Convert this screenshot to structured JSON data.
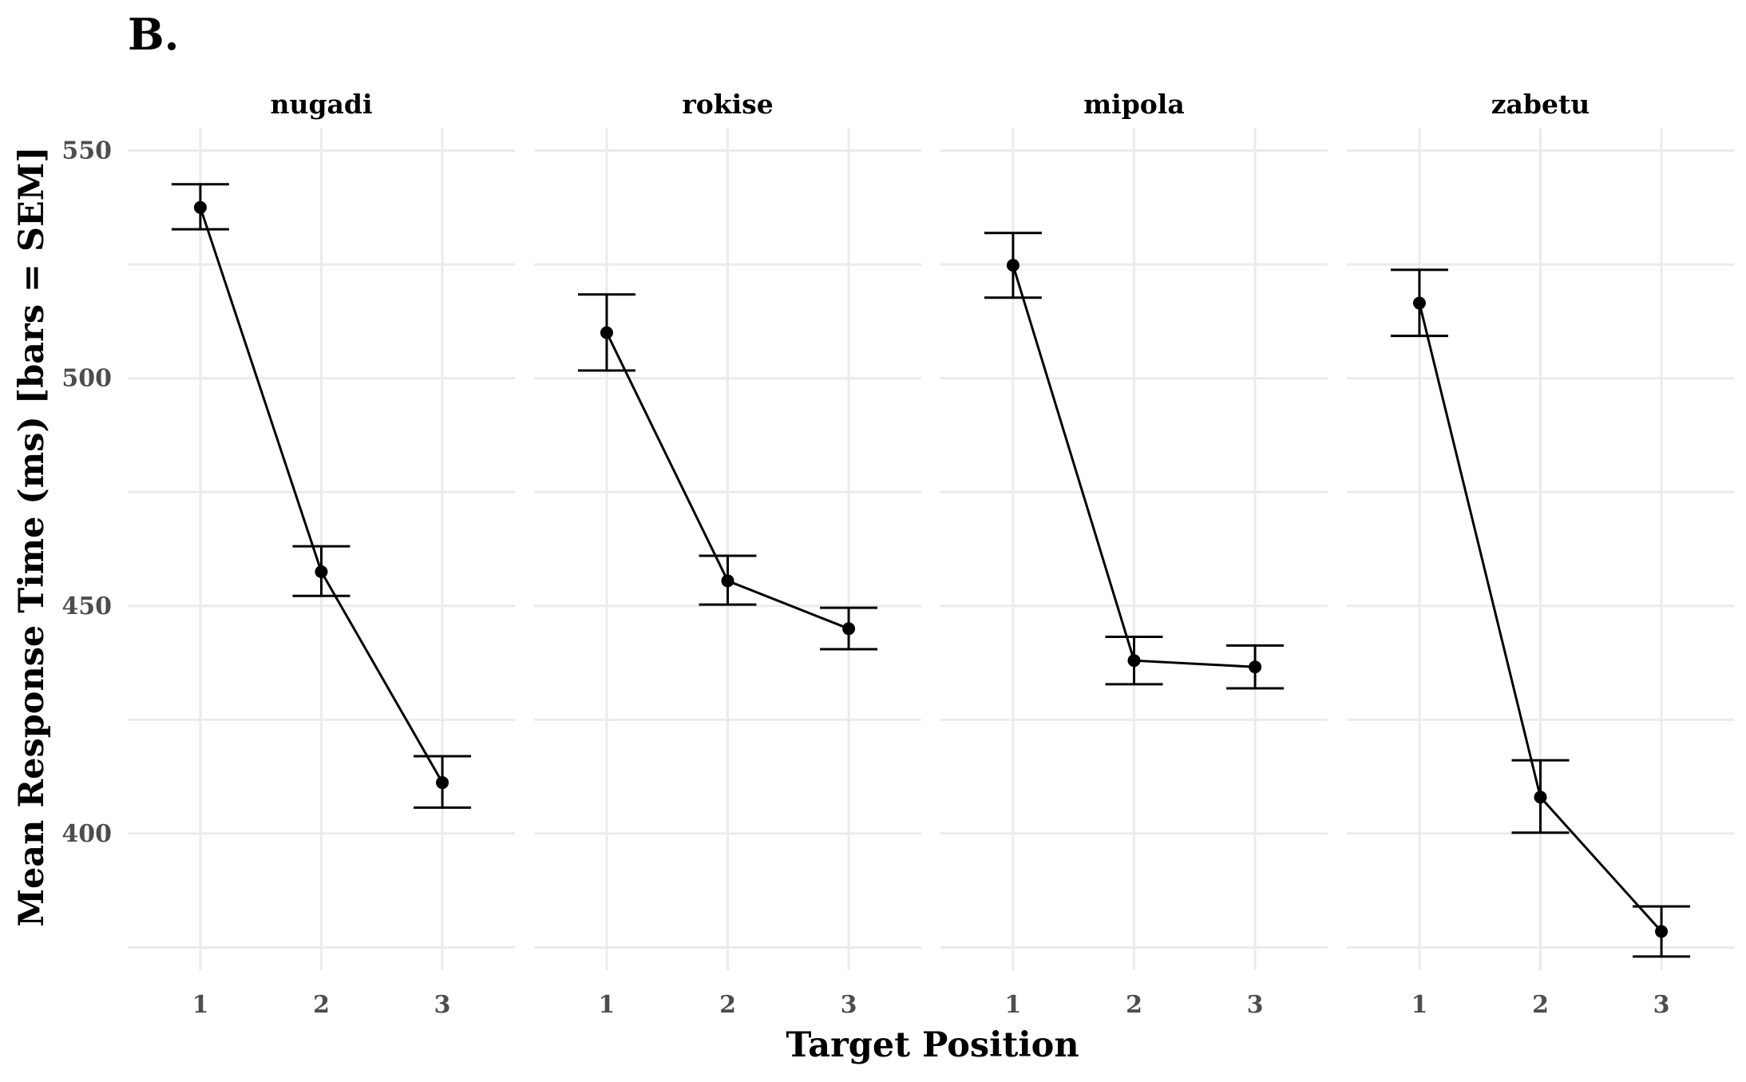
{
  "figure_label": "B.",
  "chart_data": {
    "type": "line",
    "xlabel": "Target Position",
    "ylabel": "Mean Response Time (ms) [bars = SEM]",
    "x": [
      1,
      2,
      3
    ],
    "x_ticks": [
      "1",
      "2",
      "3"
    ],
    "ylim": [
      370,
      555
    ],
    "y_ticks": [
      400,
      450,
      500,
      550
    ],
    "grid": true,
    "error_bars": "SEM",
    "panels": [
      {
        "name": "nugadi",
        "values": [
          537.5,
          457.5,
          411.2
        ],
        "sem_low": [
          532.7,
          452.2,
          405.7
        ],
        "sem_high": [
          542.6,
          463.1,
          417.0
        ]
      },
      {
        "name": "rokise",
        "values": [
          510.0,
          455.5,
          445.0
        ],
        "sem_low": [
          501.7,
          450.3,
          440.5
        ],
        "sem_high": [
          518.4,
          461.0,
          449.6
        ]
      },
      {
        "name": "mipola",
        "values": [
          524.8,
          438.0,
          436.6
        ],
        "sem_low": [
          517.7,
          432.8,
          431.9
        ],
        "sem_high": [
          531.9,
          443.2,
          441.3
        ]
      },
      {
        "name": "zabetu",
        "values": [
          516.5,
          408.0,
          378.5
        ],
        "sem_low": [
          509.3,
          400.2,
          373.0
        ],
        "sem_high": [
          523.8,
          416.1,
          384.0
        ]
      }
    ]
  }
}
